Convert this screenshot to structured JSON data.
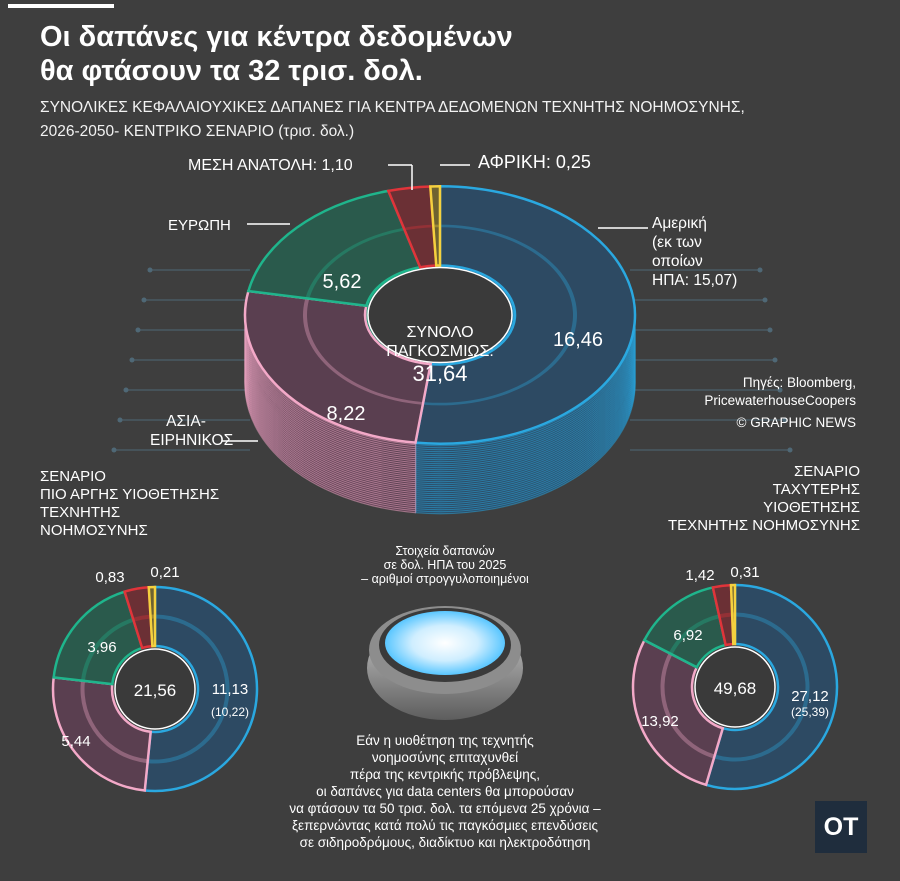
{
  "header": {
    "title_line1": "Οι δαπάνες για κέντρα δεδομένων",
    "title_line2": "θα φτάσουν τα 32 τρισ. δολ.",
    "subtitle_line1": "ΣΥΝΟΛΙΚΕΣ ΚΕΦΑΛΑΙΟΥΧΙΚΕΣ ΔΑΠΑΝΕΣ ΓΙΑ ΚΕΝΤΡΑ ΔΕΔΟΜΕΝΩΝ ΤΕΧΝΗΤΗΣ ΝΟΗΜΟΣΥΝΗΣ,",
    "subtitle_line2": "2026-2050- ΚΕΝΤΡΙΚΟ ΣΕΝΑΡΙΟ (τρισ. δολ.)"
  },
  "labels": {
    "middle_east": "ΜΕΣΗ ΑΝΑΤΟΛΗ: 1,10",
    "africa": "ΑΦΡΙΚΗ: 0,25",
    "europe": "ΕΥΡΩΠΗ",
    "america_l1": "Αμερική",
    "america_l2": "(εκ των",
    "america_l3": "οποίων",
    "america_l4": "ΗΠΑ: 15,07)",
    "asia_l1": "ΑΣΙΑ-",
    "asia_l2": "ΕΙΡΗΝΙΚΟΣ",
    "total_l1": "ΣΥΝΟΛΟ",
    "total_l2": "ΠΑΓΚΟΣΜΙΩΣ:",
    "total_value": "31,64"
  },
  "sources": {
    "line1": "Πηγές: Bloomberg,",
    "line2": "PricewaterhouseCoopers",
    "line3": "© GRAPHIC NEWS"
  },
  "scenario_slow": {
    "line1": "ΣΕΝΑΡΙΟ",
    "line2": "ΠΙΟ ΑΡΓΗΣ ΥΙΟΘΕΤΗΣΗΣ",
    "line3": "ΤΕΧΝΗΤΗΣ",
    "line4": "ΝΟΗΜΟΣΥΝΗΣ"
  },
  "scenario_fast": {
    "line1": "ΣΕΝΑΡΙΟ",
    "line2": "ΤΑΧΥΤΕΡΗΣ",
    "line3": "ΥΙΟΘΕΤΗΣΗΣ",
    "line4": "ΤΕΧΝΗΤΗΣ ΝΟΗΜΟΣΥΝΗΣ"
  },
  "legend_note": {
    "line1": "Στοιχεία δαπανών",
    "line2": "σε δολ. ΗΠΑ του 2025",
    "line3": "– αριθμοί στρογγυλοποιημένοι"
  },
  "bottom_note": {
    "line1": "Εάν η υιοθέτηση της τεχνητής",
    "line2": "νοημοσύνης επιταχυνθεί",
    "line3": "πέρα της κεντρικής πρόβλεψης,",
    "line4": "οι δαπάνες για data centers θα μπορούσαν",
    "line5": "να φτάσουν τα 50 τρισ. δολ. τα επόμενα 25 χρόνια –",
    "line6": "ξεπερνώντας κατά πολύ τις παγκόσμιες επενδύσεις",
    "line7": "σε σιδηροδρόμους, διαδίκτυο και ηλεκτροδότηση"
  },
  "logo": "OT",
  "colors": {
    "background": "#3e3e3e",
    "america": "#2aa8e0",
    "asia_pacific": "#f3a9c8",
    "europe": "#1fb58c",
    "middle_east": "#e0343a",
    "africa": "#f4d03f"
  },
  "chart_data": [
    {
      "type": "pie",
      "variant": "donut",
      "name": "central",
      "categories": [
        "Αμερική",
        "Ασία-Ειρηνικός",
        "Ευρώπη",
        "Μέση Ανατολή",
        "Αφρική"
      ],
      "values": [
        16.46,
        8.22,
        5.62,
        1.1,
        0.25
      ],
      "value_labels": [
        "16,46",
        "8,22",
        "5,62",
        "",
        ""
      ],
      "total": 31.64,
      "usa_value": 15.07
    },
    {
      "type": "pie",
      "variant": "donut",
      "name": "slow_adoption",
      "categories": [
        "Αμερική",
        "Ασία-Ειρηνικός",
        "Ευρώπη",
        "Μέση Ανατολή",
        "Αφρική"
      ],
      "values": [
        11.13,
        5.44,
        3.96,
        0.83,
        0.21
      ],
      "value_labels": [
        "11,13",
        "5,44",
        "3,96",
        "0,83",
        "0,21"
      ],
      "usa_label": "(10,22)",
      "total_label": "21,56"
    },
    {
      "type": "pie",
      "variant": "donut",
      "name": "fast_adoption",
      "categories": [
        "Αμερική",
        "Ασία-Ειρηνικός",
        "Ευρώπη",
        "Μέση Ανατολή",
        "Αφρική"
      ],
      "values": [
        27.12,
        13.92,
        6.92,
        1.42,
        0.31
      ],
      "value_labels": [
        "27,12",
        "13,92",
        "6,92",
        "1,42",
        "0,31"
      ],
      "usa_label": "(25,39)",
      "total_label": "49,68"
    }
  ]
}
